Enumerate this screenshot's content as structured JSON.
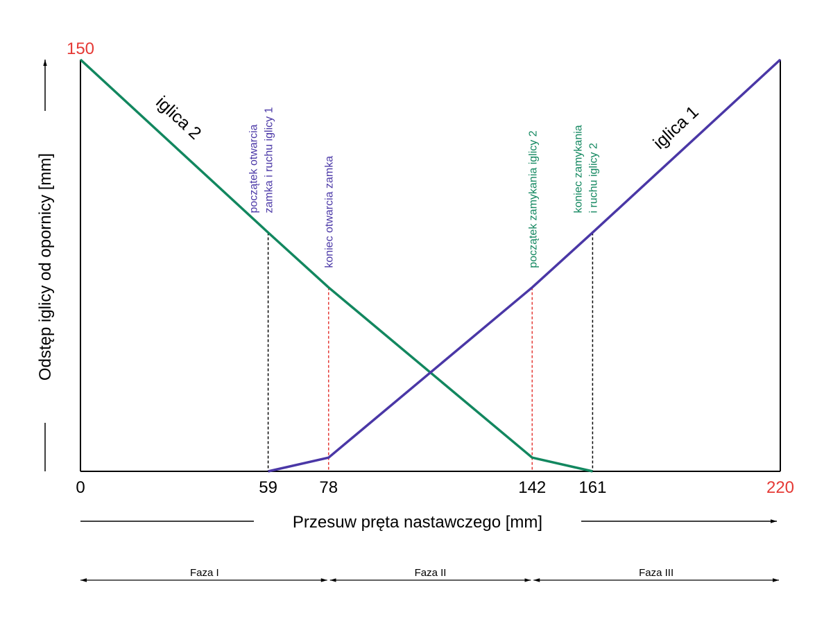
{
  "chart_data": {
    "type": "line",
    "xlabel": "Przesuw pręta nastawczego [mm]",
    "ylabel": "Odstęp iglicy od opornicy [mm]",
    "xlim": [
      0,
      220
    ],
    "ylim": [
      0,
      150
    ],
    "x_ticks": [
      {
        "value": 0,
        "label": "0",
        "highlight": false
      },
      {
        "value": 59,
        "label": "59",
        "highlight": false
      },
      {
        "value": 78,
        "label": "78",
        "highlight": false
      },
      {
        "value": 142,
        "label": "142",
        "highlight": false
      },
      {
        "value": 161,
        "label": "161",
        "highlight": false
      },
      {
        "value": 220,
        "label": "220",
        "highlight": true
      }
    ],
    "y_max_label": "150",
    "series": [
      {
        "name": "iglica 2",
        "color": "#12875f",
        "points": [
          [
            0,
            150
          ],
          [
            59,
            87
          ],
          [
            78,
            67
          ],
          [
            142,
            5
          ],
          [
            161,
            0
          ]
        ]
      },
      {
        "name": "iglica 1",
        "color": "#4a37a6",
        "points": [
          [
            59,
            0
          ],
          [
            78,
            5
          ],
          [
            142,
            67
          ],
          [
            161,
            87
          ],
          [
            220,
            150
          ]
        ]
      }
    ],
    "markers": [
      {
        "x": 59,
        "y": 87,
        "color": "#000000",
        "label_color": "#4a37a6",
        "label_lines": [
          "początek otwarcia",
          "zamka i ruchu iglicy 1"
        ]
      },
      {
        "x": 78,
        "y": 67,
        "color": "#e53935",
        "label_color": "#4a37a6",
        "label_lines": [
          "koniec otwarcia zamka"
        ]
      },
      {
        "x": 142,
        "y": 67,
        "color": "#e53935",
        "label_color": "#12875f",
        "label_lines": [
          "początek zamykania iglicy 2"
        ]
      },
      {
        "x": 161,
        "y": 87,
        "color": "#000000",
        "label_color": "#12875f",
        "label_lines": [
          "koniec zamykania",
          "i ruchu iglicy 2"
        ]
      }
    ],
    "phases": [
      {
        "label": "Faza I",
        "from": 0,
        "to": 78
      },
      {
        "label": "Faza II",
        "from": 78,
        "to": 142
      },
      {
        "label": "Faza III",
        "from": 142,
        "to": 220
      }
    ],
    "colors": {
      "axis": "#000000",
      "highlight": "#e53935"
    }
  }
}
